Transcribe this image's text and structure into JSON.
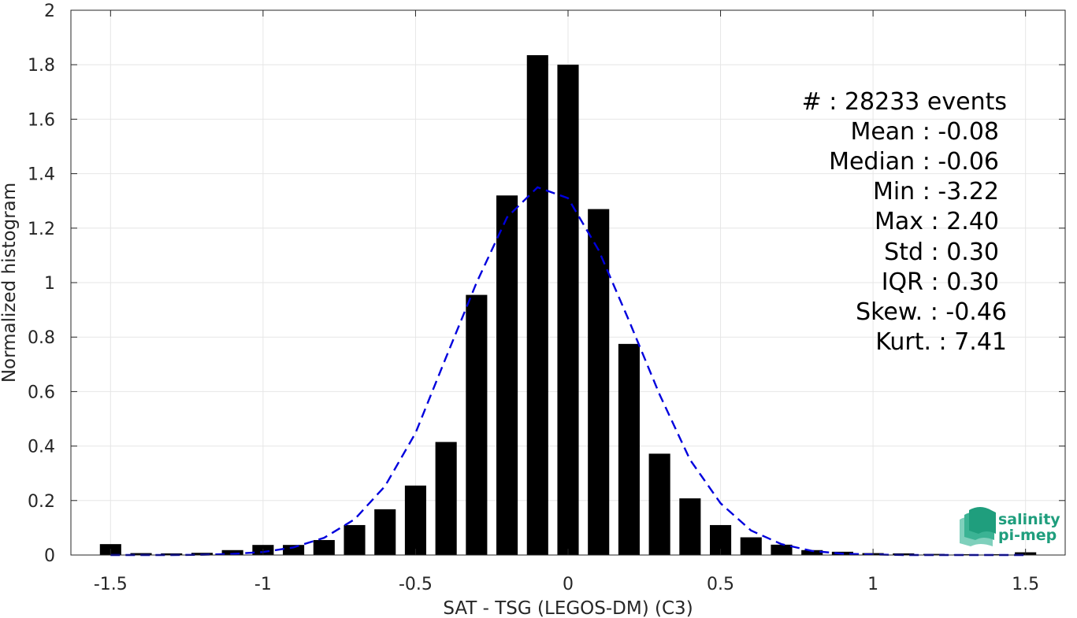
{
  "chart_data": {
    "type": "bar",
    "xlabel": "SAT - TSG (LEGOS-DM) (C3)",
    "ylabel": "Normalized histogram",
    "xlim": [
      -1.63,
      1.63
    ],
    "ylim": [
      0,
      2
    ],
    "grid": true,
    "x_ticks": [
      "-1.5",
      "-1",
      "-0.5",
      "0",
      "0.5",
      "1",
      "1.5"
    ],
    "x_tick_values": [
      -1.5,
      -1,
      -0.5,
      0,
      0.5,
      1,
      1.5
    ],
    "y_ticks": [
      "0",
      "0.2",
      "0.4",
      "0.6",
      "0.8",
      "1",
      "1.2",
      "1.4",
      "1.6",
      "1.8",
      "2"
    ],
    "y_tick_values": [
      0,
      0.2,
      0.4,
      0.6,
      0.8,
      1,
      1.2,
      1.4,
      1.6,
      1.8,
      2
    ],
    "bar_width": 0.07,
    "bars": {
      "x": [
        -1.5,
        -1.4,
        -1.3,
        -1.2,
        -1.1,
        -1.0,
        -0.9,
        -0.8,
        -0.7,
        -0.6,
        -0.5,
        -0.4,
        -0.3,
        -0.2,
        -0.1,
        0.0,
        0.1,
        0.2,
        0.3,
        0.4,
        0.5,
        0.6,
        0.7,
        0.8,
        0.9,
        1.0,
        1.1,
        1.2,
        1.3,
        1.4,
        1.5
      ],
      "values": [
        0.04,
        0.007,
        0.006,
        0.008,
        0.018,
        0.037,
        0.037,
        0.055,
        0.11,
        0.168,
        0.255,
        0.415,
        0.955,
        1.32,
        1.835,
        1.8,
        1.27,
        0.775,
        0.372,
        0.208,
        0.11,
        0.065,
        0.038,
        0.018,
        0.012,
        0.007,
        0.006,
        0.004,
        0.003,
        0.003,
        0.01
      ],
      "color": "#000000"
    },
    "fit_curve": {
      "style": "dashed",
      "color": "#0000dd",
      "x": [
        -1.5,
        -1.4,
        -1.3,
        -1.2,
        -1.1,
        -1.0,
        -0.9,
        -0.8,
        -0.7,
        -0.6,
        -0.5,
        -0.4,
        -0.3,
        -0.2,
        -0.1,
        0.0,
        0.1,
        0.2,
        0.3,
        0.4,
        0.5,
        0.6,
        0.7,
        0.8,
        0.9,
        1.0,
        1.1,
        1.2,
        1.3,
        1.4,
        1.5
      ],
      "y": [
        0.0,
        0.0,
        0.0,
        0.001,
        0.004,
        0.011,
        0.028,
        0.063,
        0.131,
        0.253,
        0.448,
        0.726,
        1.0,
        1.24,
        1.35,
        1.31,
        1.12,
        0.86,
        0.59,
        0.35,
        0.19,
        0.09,
        0.04,
        0.015,
        0.005,
        0.002,
        0.0,
        0.0,
        0.0,
        0.0,
        0.0
      ]
    },
    "annotations": [
      "#  : 28233 events",
      "Mean : -0.08",
      "Median : -0.06",
      "Min : -3.22",
      "Max : 2.40",
      "Std : 0.30",
      "IQR : 0.30",
      "Skew. : -0.46",
      "Kurt. : 7.41"
    ]
  },
  "logo": {
    "line1": "salinity",
    "line2": "pi-mep",
    "color": "#1f9e7d"
  }
}
